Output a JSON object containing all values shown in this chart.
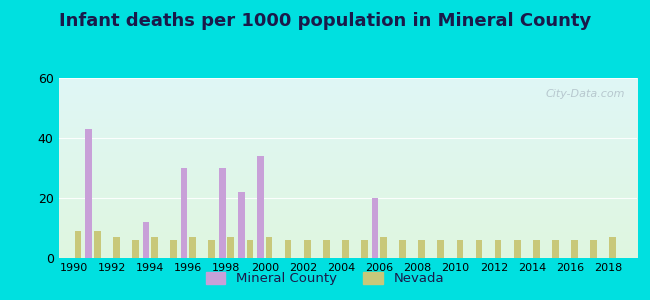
{
  "title": "Infant deaths per 1000 population in Mineral County",
  "years": [
    1990,
    1991,
    1992,
    1993,
    1994,
    1995,
    1996,
    1997,
    1998,
    1999,
    2000,
    2001,
    2002,
    2003,
    2004,
    2005,
    2006,
    2007,
    2008,
    2009,
    2010,
    2011,
    2012,
    2013,
    2014,
    2015,
    2016,
    2017,
    2018
  ],
  "mineral_county": [
    0,
    43,
    0,
    0,
    12,
    0,
    30,
    0,
    30,
    22,
    34,
    0,
    0,
    0,
    0,
    0,
    20,
    0,
    0,
    0,
    0,
    0,
    0,
    0,
    0,
    0,
    0,
    0,
    0
  ],
  "nevada": [
    9,
    9,
    7,
    6,
    7,
    6,
    7,
    6,
    7,
    6,
    7,
    6,
    6,
    6,
    6,
    6,
    7,
    6,
    6,
    6,
    6,
    6,
    6,
    6,
    6,
    6,
    6,
    6,
    7
  ],
  "mineral_color": "#c8a0d8",
  "nevada_color": "#c8c87a",
  "ylim": [
    0,
    60
  ],
  "yticks": [
    0,
    20,
    40,
    60
  ],
  "bg_top_color": "#d8f0f0",
  "bg_bottom_color": "#dff0d8",
  "outer_bg": "#00e0e0",
  "bar_width": 0.35,
  "title_fontsize": 13,
  "watermark": "City-Data.com"
}
